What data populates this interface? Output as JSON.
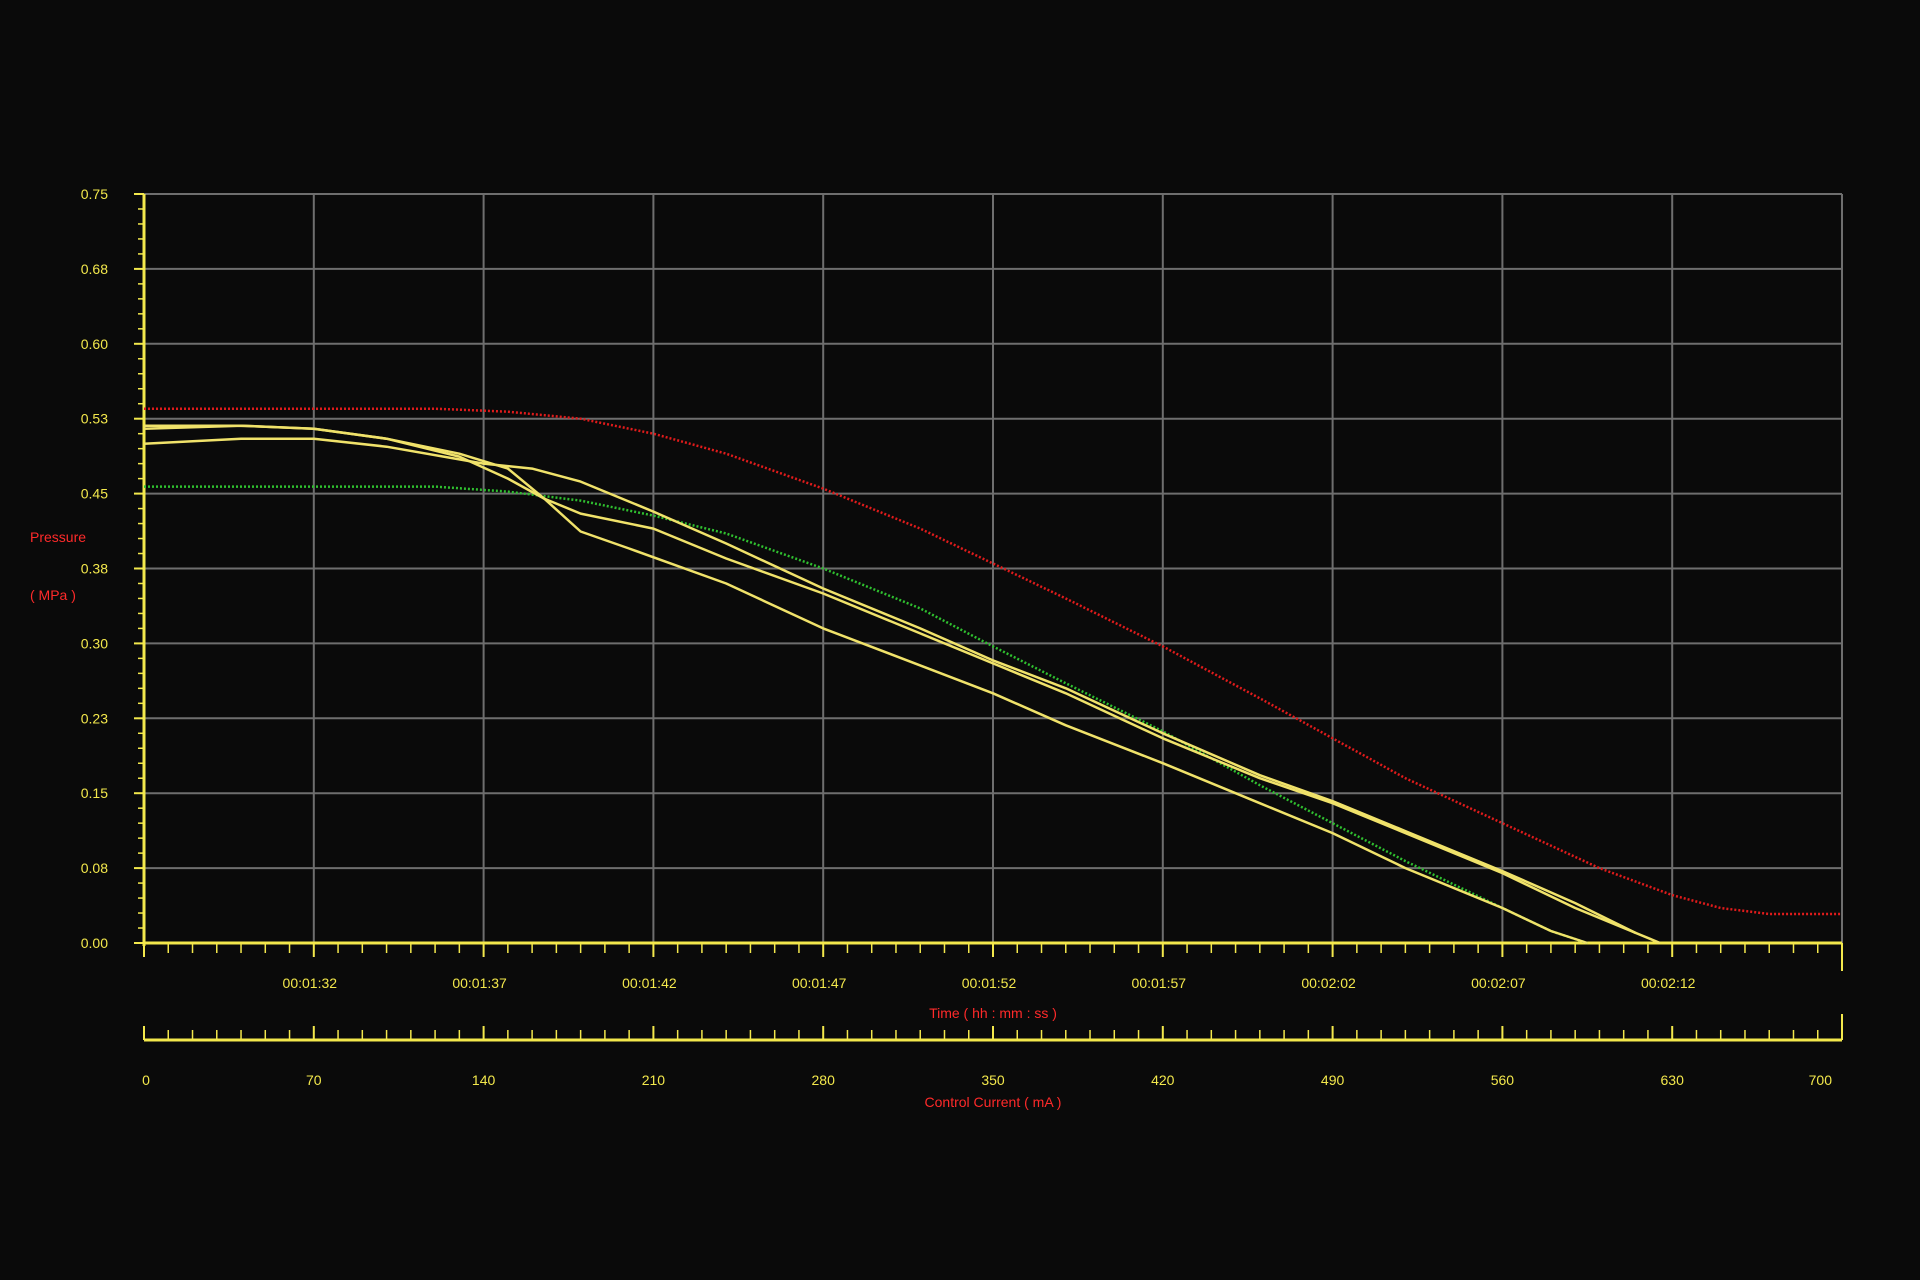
{
  "colors": {
    "background": "#0a0a0a",
    "grid": "#6e6e6e",
    "axis": "#f3e84c",
    "axis_title": "#ff2a2a",
    "series_red": "#e01b1b",
    "series_green": "#2fbf2f",
    "series_yellow": "#f0e26a"
  },
  "chart_data": {
    "type": "line",
    "title": "",
    "ylabel_line1": "Pressure",
    "ylabel_line2": "( MPa )",
    "xlabel": "Time ( hh : mm : ss )",
    "x2label": "Control Current ( mA )",
    "ylim": [
      0,
      0.75
    ],
    "xlim": [
      0,
      700
    ],
    "grid": true,
    "y_ticks": [
      "0.00",
      "0.08",
      "0.15",
      "0.23",
      "0.30",
      "0.38",
      "0.45",
      "0.53",
      "0.60",
      "0.68",
      "0.75"
    ],
    "time_ticks": [
      {
        "x": 70,
        "label": "00:01:32"
      },
      {
        "x": 140,
        "label": "00:01:37"
      },
      {
        "x": 210,
        "label": "00:01:42"
      },
      {
        "x": 280,
        "label": "00:01:47"
      },
      {
        "x": 350,
        "label": "00:01:52"
      },
      {
        "x": 420,
        "label": "00:01:57"
      },
      {
        "x": 490,
        "label": "00:02:02"
      },
      {
        "x": 560,
        "label": "00:02:07"
      },
      {
        "x": 630,
        "label": "00:02:12"
      }
    ],
    "current_ticks": [
      "0",
      "70",
      "140",
      "210",
      "280",
      "350",
      "420",
      "490",
      "560",
      "630",
      "700"
    ],
    "series": [
      {
        "color": "series_red",
        "style": "dotted",
        "x": [
          0,
          40,
          80,
          120,
          150,
          180,
          210,
          240,
          280,
          320,
          350,
          380,
          420,
          460,
          490,
          520,
          560,
          600,
          630,
          650,
          670,
          700
        ],
        "y": [
          0.535,
          0.535,
          0.535,
          0.535,
          0.532,
          0.525,
          0.51,
          0.49,
          0.455,
          0.415,
          0.38,
          0.345,
          0.297,
          0.245,
          0.205,
          0.165,
          0.12,
          0.075,
          0.048,
          0.035,
          0.029,
          0.029
        ]
      },
      {
        "color": "series_green",
        "style": "dotted",
        "x": [
          0,
          60,
          120,
          150,
          180,
          210,
          240,
          280,
          320,
          350,
          380,
          420,
          460,
          490,
          520,
          560,
          580,
          595
        ],
        "y": [
          0.457,
          0.457,
          0.457,
          0.452,
          0.443,
          0.428,
          0.41,
          0.375,
          0.335,
          0.297,
          0.26,
          0.212,
          0.158,
          0.12,
          0.082,
          0.035,
          0.012,
          0.0
        ]
      },
      {
        "color": "series_yellow",
        "style": "solid",
        "x": [
          0,
          40,
          70,
          100,
          130,
          150,
          165,
          180,
          210,
          240,
          280,
          320,
          350,
          380,
          420,
          460,
          490,
          520,
          560,
          590,
          610,
          625
        ],
        "y": [
          0.515,
          0.518,
          0.515,
          0.505,
          0.487,
          0.465,
          0.445,
          0.43,
          0.415,
          0.385,
          0.35,
          0.31,
          0.28,
          0.25,
          0.205,
          0.165,
          0.14,
          0.11,
          0.07,
          0.035,
          0.015,
          0.0
        ]
      },
      {
        "color": "series_yellow",
        "style": "solid",
        "x": [
          0,
          40,
          70,
          100,
          140,
          160,
          180,
          210,
          240,
          280,
          320,
          350,
          380,
          420,
          460,
          490,
          520,
          560,
          590,
          615
        ],
        "y": [
          0.5,
          0.505,
          0.505,
          0.497,
          0.48,
          0.475,
          0.462,
          0.432,
          0.4,
          0.355,
          0.315,
          0.283,
          0.255,
          0.21,
          0.168,
          0.142,
          0.112,
          0.072,
          0.04,
          0.01
        ]
      },
      {
        "color": "series_yellow",
        "style": "solid",
        "x": [
          0,
          40,
          70,
          100,
          130,
          150,
          165,
          180,
          200,
          240,
          280,
          320,
          350,
          380,
          420,
          460,
          490,
          520,
          560,
          580,
          595
        ],
        "y": [
          0.518,
          0.518,
          0.515,
          0.505,
          0.49,
          0.475,
          0.445,
          0.412,
          0.395,
          0.36,
          0.315,
          0.278,
          0.25,
          0.218,
          0.18,
          0.14,
          0.11,
          0.075,
          0.035,
          0.012,
          0.0
        ]
      }
    ]
  }
}
